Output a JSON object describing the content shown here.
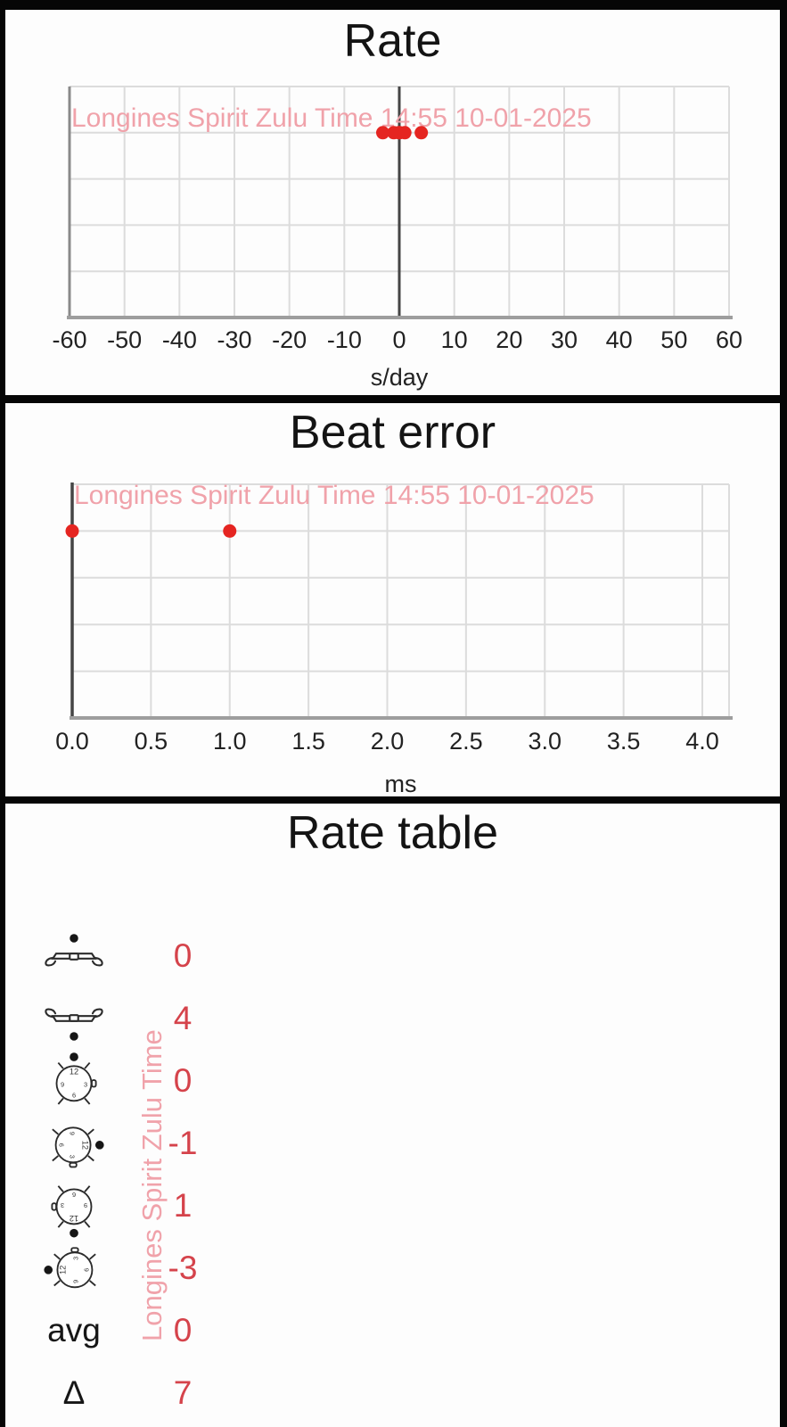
{
  "colors": {
    "frame": "#060606",
    "card_bg": "#fdfdfd",
    "grid": "#dcdcdc",
    "axis_dark": "#454545",
    "axis_gray": "#9e9e9e",
    "text": "#141414",
    "point_red": "#e52521",
    "value_red": "#d5434b",
    "watermark_pink": "#f0a2aa"
  },
  "chart_data": [
    {
      "type": "scatter",
      "title": "Rate",
      "xlabel": "s/day",
      "xlim": [
        -60,
        60
      ],
      "xticks": [
        "-60",
        "-50",
        "-40",
        "-30",
        "-20",
        "-10",
        "0",
        "10",
        "20",
        "30",
        "40",
        "50",
        "60"
      ],
      "values": [
        0,
        4,
        0,
        -1,
        1,
        -3
      ],
      "zero_axis": 0,
      "grid": true,
      "legend": "none",
      "watermark": "Longines Spirit Zulu Time 14:55 10-01-2025"
    },
    {
      "type": "scatter",
      "title": "Beat error",
      "xlabel": "ms",
      "xlim": [
        0,
        4
      ],
      "xticks": [
        "0.0",
        "0.5",
        "1.0",
        "1.5",
        "2.0",
        "2.5",
        "3.0",
        "3.5",
        "4.0"
      ],
      "values": [
        0.0,
        1.0
      ],
      "grid": true,
      "legend": "none",
      "watermark": "Longines Spirit Zulu Time 14:55 10-01-2025"
    }
  ],
  "table": {
    "title": "Rate table",
    "watermark": "Longines Spirit Zulu Time",
    "rows": [
      {
        "icon": "watch-side-dot-top-icon",
        "value": "0"
      },
      {
        "icon": "watch-side-dot-bottom-icon",
        "value": "4"
      },
      {
        "icon": "watch-face-dot-top-icon",
        "value": "0"
      },
      {
        "icon": "watch-face-dot-right-icon",
        "value": "-1"
      },
      {
        "icon": "watch-face-dot-bottom-icon",
        "value": "1"
      },
      {
        "icon": "watch-face-dot-left-icon",
        "value": "-3"
      },
      {
        "label": "avg",
        "value": "0"
      },
      {
        "label": "Δ",
        "value": "7"
      }
    ]
  }
}
